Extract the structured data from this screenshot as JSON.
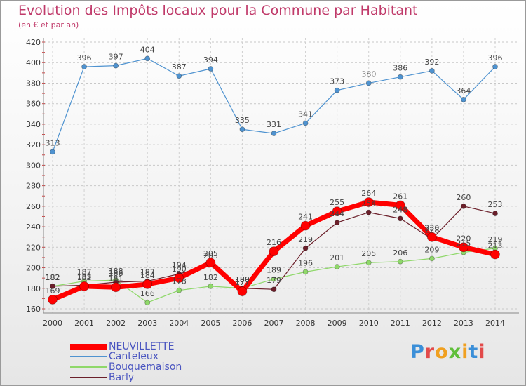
{
  "title": "Evolution des Impôts locaux pour la Commune par Habitant",
  "subtitle": "(en € et par an)",
  "logo_text": "Proxiti",
  "chart_data": {
    "type": "line",
    "title": "Evolution des Impôts locaux pour la Commune par Habitant",
    "subtitle": "(en € et par an)",
    "xlabel": "",
    "ylabel": "",
    "ylim": [
      160,
      420
    ],
    "yticks": [
      160,
      180,
      200,
      220,
      240,
      260,
      280,
      300,
      320,
      340,
      360,
      380,
      400,
      420
    ],
    "x": [
      "2000",
      "2001",
      "2002",
      "2003",
      "2004",
      "2005",
      "2006",
      "2007",
      "2008",
      "2009",
      "2010",
      "2011",
      "2012",
      "2013",
      "2014"
    ],
    "legend_position": "bottom-left",
    "series": [
      {
        "name": "NEUVILLETTE",
        "color": "#ff0000",
        "values": [
          169,
          182,
          181,
          184,
          190,
          205,
          177,
          216,
          241,
          255,
          264,
          261,
          230,
          220,
          213
        ]
      },
      {
        "name": "Canteleux",
        "color": "#4f93d0",
        "values": [
          313,
          396,
          397,
          404,
          387,
          394,
          335,
          331,
          341,
          373,
          380,
          386,
          392,
          364,
          396
        ]
      },
      {
        "name": "Bouquemaison",
        "color": "#8fd86a",
        "values": [
          182,
          187,
          188,
          166,
          178,
          182,
          180,
          189,
          196,
          201,
          205,
          206,
          209,
          215,
          219
        ]
      },
      {
        "name": "Barly",
        "color": "#6b1f2a",
        "values": [
          182,
          183,
          186,
          187,
          194,
          203,
          180,
          179,
          219,
          244,
          254,
          248,
          228,
          260,
          253
        ]
      }
    ]
  }
}
